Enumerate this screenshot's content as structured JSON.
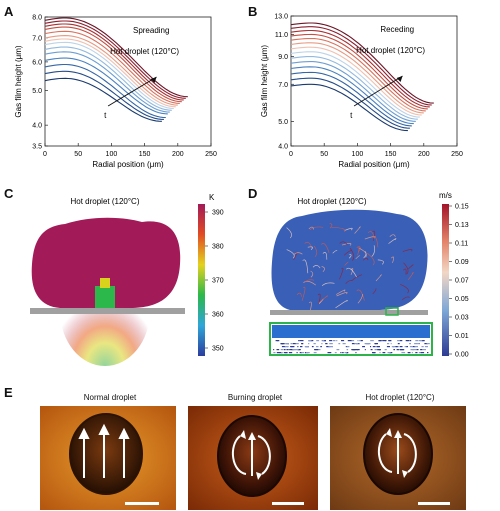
{
  "panels": {
    "A": {
      "letter": "A"
    },
    "B": {
      "letter": "B"
    },
    "C": {
      "letter": "C"
    },
    "D": {
      "letter": "D"
    },
    "E": {
      "letter": "E"
    }
  },
  "chart_data": [
    {
      "type": "line",
      "panel": "A",
      "title": "Spreading",
      "annotation": "Hot droplet (120°C)",
      "arrow_label": "t",
      "xlabel": "Radial position (μm)",
      "ylabel": "Gas film height (μm)",
      "xlim": [
        0,
        250
      ],
      "ylim": [
        3.5,
        8.0
      ],
      "yscale": "log",
      "x_ticks": [
        "0",
        "50",
        "100",
        "150",
        "200",
        "250"
      ],
      "y_ticks": [
        "3.5",
        "4.0",
        "5.0",
        "6.0",
        "7.0",
        "8.0"
      ],
      "curve_count": 14,
      "colors": [
        "#1a3a6e",
        "#244d8a",
        "#3567a6",
        "#4b82bf",
        "#6d9ed2",
        "#92b9df",
        "#bcd3e8",
        "#efc1b0",
        "#e79b83",
        "#d9725c",
        "#c44f42",
        "#a83134",
        "#8c1e2e",
        "#6b1426"
      ],
      "center_heights": [
        5.4,
        5.65,
        5.9,
        6.15,
        6.4,
        6.6,
        6.8,
        6.95,
        7.1,
        7.3,
        7.5,
        7.65,
        7.8,
        7.95
      ],
      "end_heights": [
        4.1,
        4.15,
        4.2,
        4.3,
        4.35,
        4.4,
        4.45,
        4.5,
        4.55,
        4.6,
        4.65,
        4.7,
        4.75,
        4.8
      ]
    },
    {
      "type": "line",
      "panel": "B",
      "title": "Receding",
      "annotation": "Hot droplet (120°C)",
      "arrow_label": "t",
      "xlabel": "Radial position (μm)",
      "ylabel": "Gas film height (μm)",
      "xlim": [
        0,
        250
      ],
      "ylim": [
        4.0,
        13.0
      ],
      "yscale": "log",
      "x_ticks": [
        "0",
        "50",
        "100",
        "150",
        "200",
        "250"
      ],
      "y_ticks": [
        "4.0",
        "5.0",
        "7.0",
        "9.0",
        "11.0",
        "13.0"
      ],
      "curve_count": 14,
      "colors": [
        "#1a3a6e",
        "#244d8a",
        "#3567a6",
        "#4b82bf",
        "#6d9ed2",
        "#92b9df",
        "#bcd3e8",
        "#efc1b0",
        "#e79b83",
        "#d9725c",
        "#c44f42",
        "#a83134",
        "#8c1e2e",
        "#6b1426"
      ],
      "center_heights": [
        7.0,
        7.4,
        7.8,
        8.2,
        8.6,
        9.0,
        9.4,
        9.8,
        10.2,
        10.6,
        11.0,
        11.4,
        11.8,
        12.2
      ],
      "end_heights": [
        4.6,
        4.7,
        4.8,
        4.9,
        5.0,
        5.1,
        5.2,
        5.3,
        5.4,
        5.5,
        5.6,
        5.7,
        5.8,
        5.9
      ]
    }
  ],
  "panel_c": {
    "title": "Hot droplet (120°C)",
    "colorbar_unit": "K",
    "colorbar_ticks": [
      "390",
      "380",
      "370",
      "360",
      "350"
    ]
  },
  "panel_d": {
    "title": "Hot droplet (120°C)",
    "colorbar_unit": "m/s",
    "colorbar_ticks": [
      "0.15",
      "0.13",
      "0.11",
      "0.09",
      "0.07",
      "0.05",
      "0.03",
      "0.01",
      "0.00"
    ]
  },
  "panel_e": {
    "captions": [
      "Normal droplet",
      "Burning droplet",
      "Hot droplet (120°C)"
    ]
  }
}
